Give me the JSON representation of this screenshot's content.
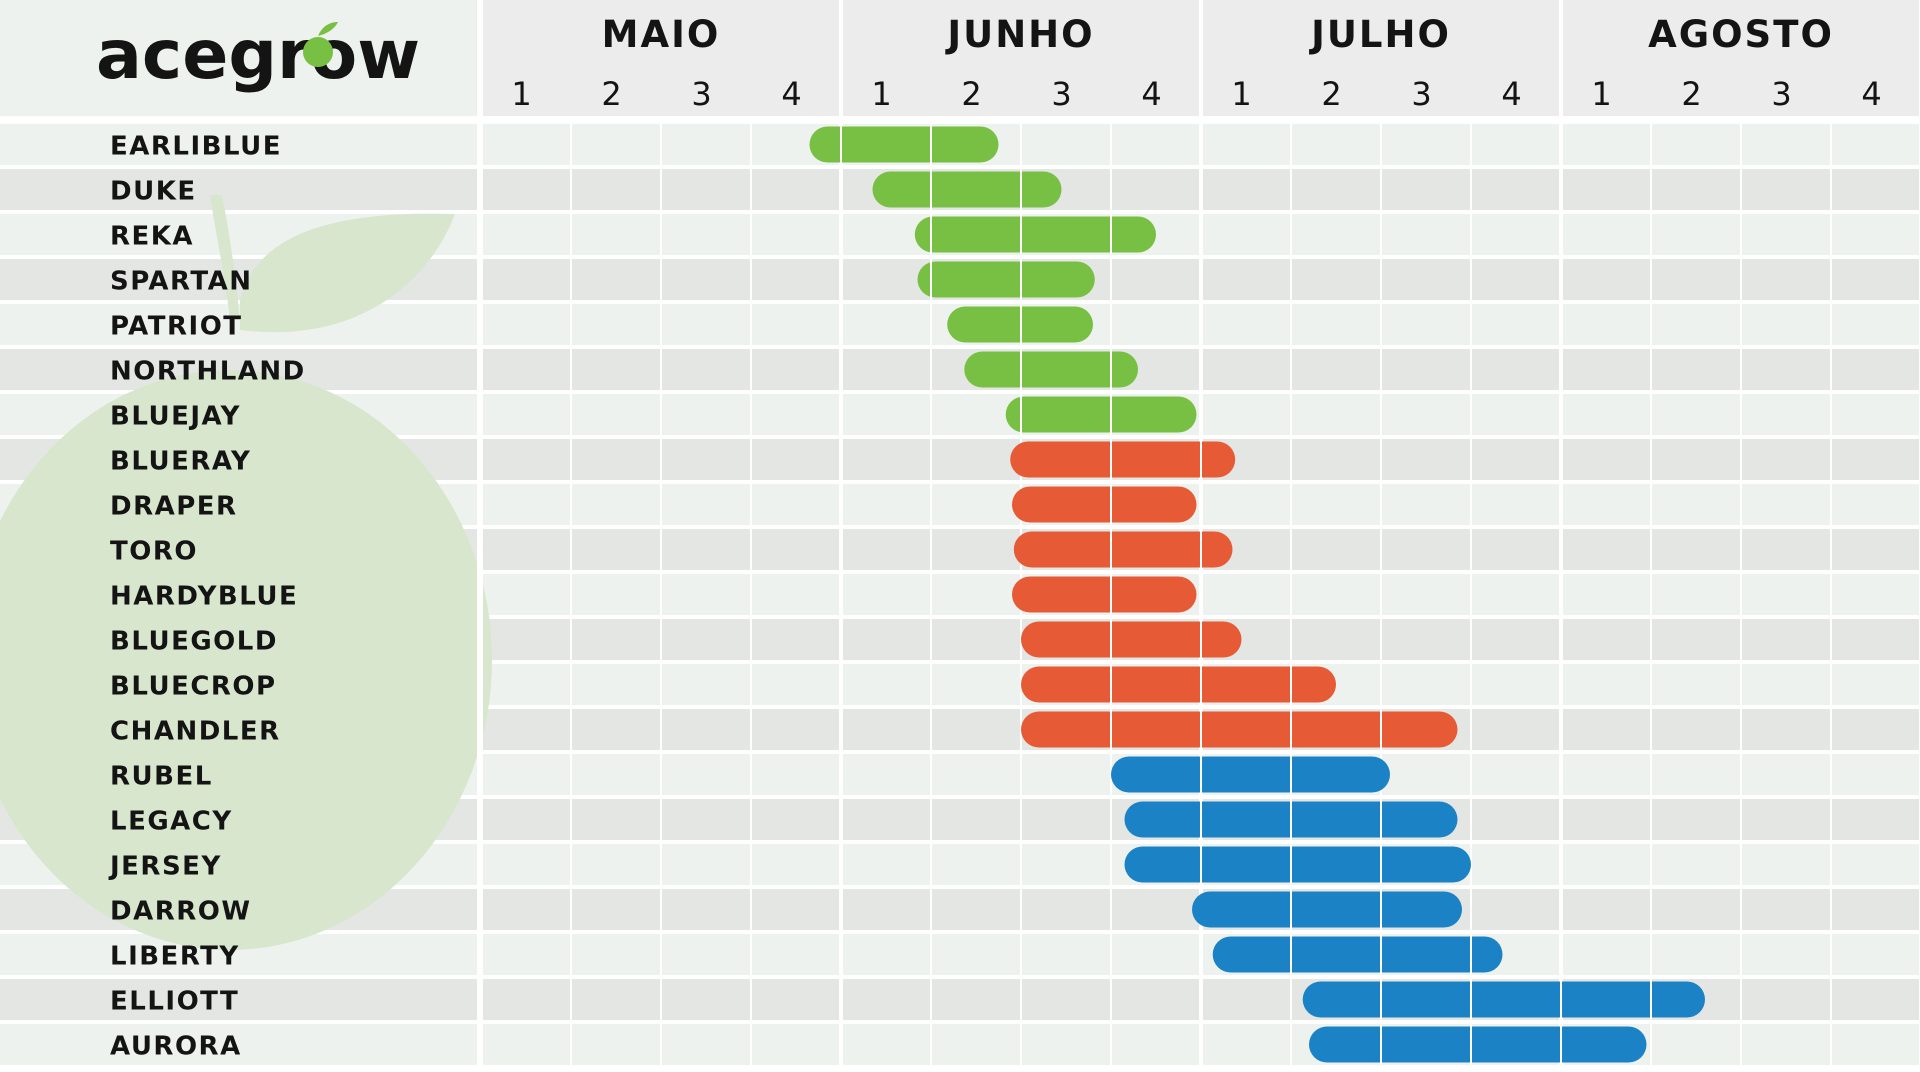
{
  "brand": {
    "name": "acegrow",
    "accent": "#77c043"
  },
  "colors": {
    "early": "#77c043",
    "mid": "#e65a35",
    "late": "#1b82c5",
    "row_bg_light": "#eef2ee",
    "row_bg_dark": "#e4e6e4",
    "header_bg": "#ececec",
    "grid_line": "#ffffff",
    "watermark": "#d7e6cd"
  },
  "chart_data": {
    "type": "bar",
    "subtype": "gantt",
    "title": "",
    "xlabel": "",
    "ylabel": "",
    "months": [
      "MAIO",
      "JUNHO",
      "JULHO",
      "AGOSTO"
    ],
    "weeks": [
      "1",
      "2",
      "3",
      "4"
    ],
    "x_unit": "week index (0 = start of MAIO week 1, 16 = end of AGOSTO week 4)",
    "xlim": [
      0,
      16
    ],
    "grid": true,
    "legend": "none",
    "varieties": [
      {
        "name": "EARLIBLUE",
        "start": 3.65,
        "end": 5.75,
        "group": "early"
      },
      {
        "name": "DUKE",
        "start": 4.35,
        "end": 6.45,
        "group": "early"
      },
      {
        "name": "REKA",
        "start": 4.82,
        "end": 7.5,
        "group": "early"
      },
      {
        "name": "SPARTAN",
        "start": 4.85,
        "end": 6.82,
        "group": "early"
      },
      {
        "name": "PATRIOT",
        "start": 5.18,
        "end": 6.8,
        "group": "early"
      },
      {
        "name": "NORTHLAND",
        "start": 5.37,
        "end": 7.3,
        "group": "early"
      },
      {
        "name": "BLUEJAY",
        "start": 5.83,
        "end": 7.95,
        "group": "early"
      },
      {
        "name": "BLUERAY",
        "start": 5.88,
        "end": 8.38,
        "group": "mid"
      },
      {
        "name": "DRAPER",
        "start": 5.9,
        "end": 7.95,
        "group": "mid"
      },
      {
        "name": "TORO",
        "start": 5.92,
        "end": 8.35,
        "group": "mid"
      },
      {
        "name": "HARDYBLUE",
        "start": 5.9,
        "end": 7.95,
        "group": "mid"
      },
      {
        "name": "BLUEGOLD",
        "start": 6.0,
        "end": 8.45,
        "group": "mid"
      },
      {
        "name": "BLUECROP",
        "start": 6.0,
        "end": 9.5,
        "group": "mid"
      },
      {
        "name": "CHANDLER",
        "start": 6.0,
        "end": 10.85,
        "group": "mid"
      },
      {
        "name": "RUBEL",
        "start": 7.0,
        "end": 10.1,
        "group": "late"
      },
      {
        "name": "LEGACY",
        "start": 7.15,
        "end": 10.85,
        "group": "late"
      },
      {
        "name": "JERSEY",
        "start": 7.15,
        "end": 11.0,
        "group": "late"
      },
      {
        "name": "DARROW",
        "start": 7.9,
        "end": 10.9,
        "group": "late"
      },
      {
        "name": "LIBERTY",
        "start": 8.13,
        "end": 11.35,
        "group": "late"
      },
      {
        "name": "ELLIOTT",
        "start": 9.13,
        "end": 13.6,
        "group": "late"
      },
      {
        "name": "AURORA",
        "start": 9.2,
        "end": 12.95,
        "group": "late"
      }
    ]
  }
}
